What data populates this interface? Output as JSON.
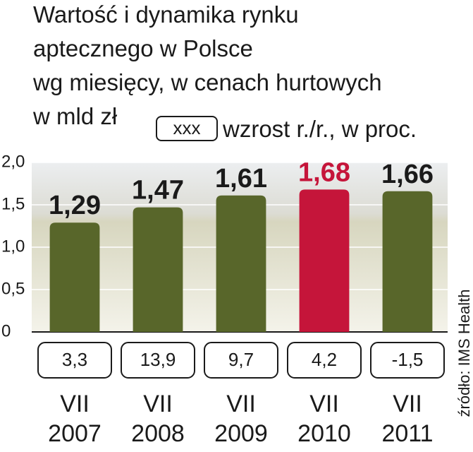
{
  "chart_data": {
    "type": "bar",
    "title": [
      "Wartość i dynamika rynku",
      "aptecznego w Polsce",
      "wg miesięcy, w cenach hurtowych",
      "w mld zł"
    ],
    "legend_box": "xxx",
    "legend_text": "wzrost r./r., w proc.",
    "months": [
      "VII",
      "VII",
      "VII",
      "VII",
      "VII"
    ],
    "categories": [
      "2007",
      "2008",
      "2009",
      "2010",
      "2011"
    ],
    "values": [
      1.29,
      1.47,
      1.61,
      1.68,
      1.66
    ],
    "value_labels": [
      "1,29",
      "1,47",
      "1,61",
      "1,68",
      "1,66"
    ],
    "colors": [
      "#58662a",
      "#58662a",
      "#58662a",
      "#c5153a",
      "#58662a"
    ],
    "label_colors": [
      "#1a1a1a",
      "#1a1a1a",
      "#1a1a1a",
      "#c5153a",
      "#1a1a1a"
    ],
    "growth_labels": [
      "3,3",
      "13,9",
      "9,7",
      "4,2",
      "-1,5"
    ],
    "ylim": [
      0,
      2
    ],
    "yticks": [
      {
        "value": 0,
        "label": "0"
      },
      {
        "value": 0.5,
        "label": "0,5"
      },
      {
        "value": 1,
        "label": "1,0"
      },
      {
        "value": 1.5,
        "label": "1,5"
      },
      {
        "value": 2,
        "label": "2,0"
      }
    ],
    "grid": true,
    "source": "źródło: IMS Health"
  }
}
